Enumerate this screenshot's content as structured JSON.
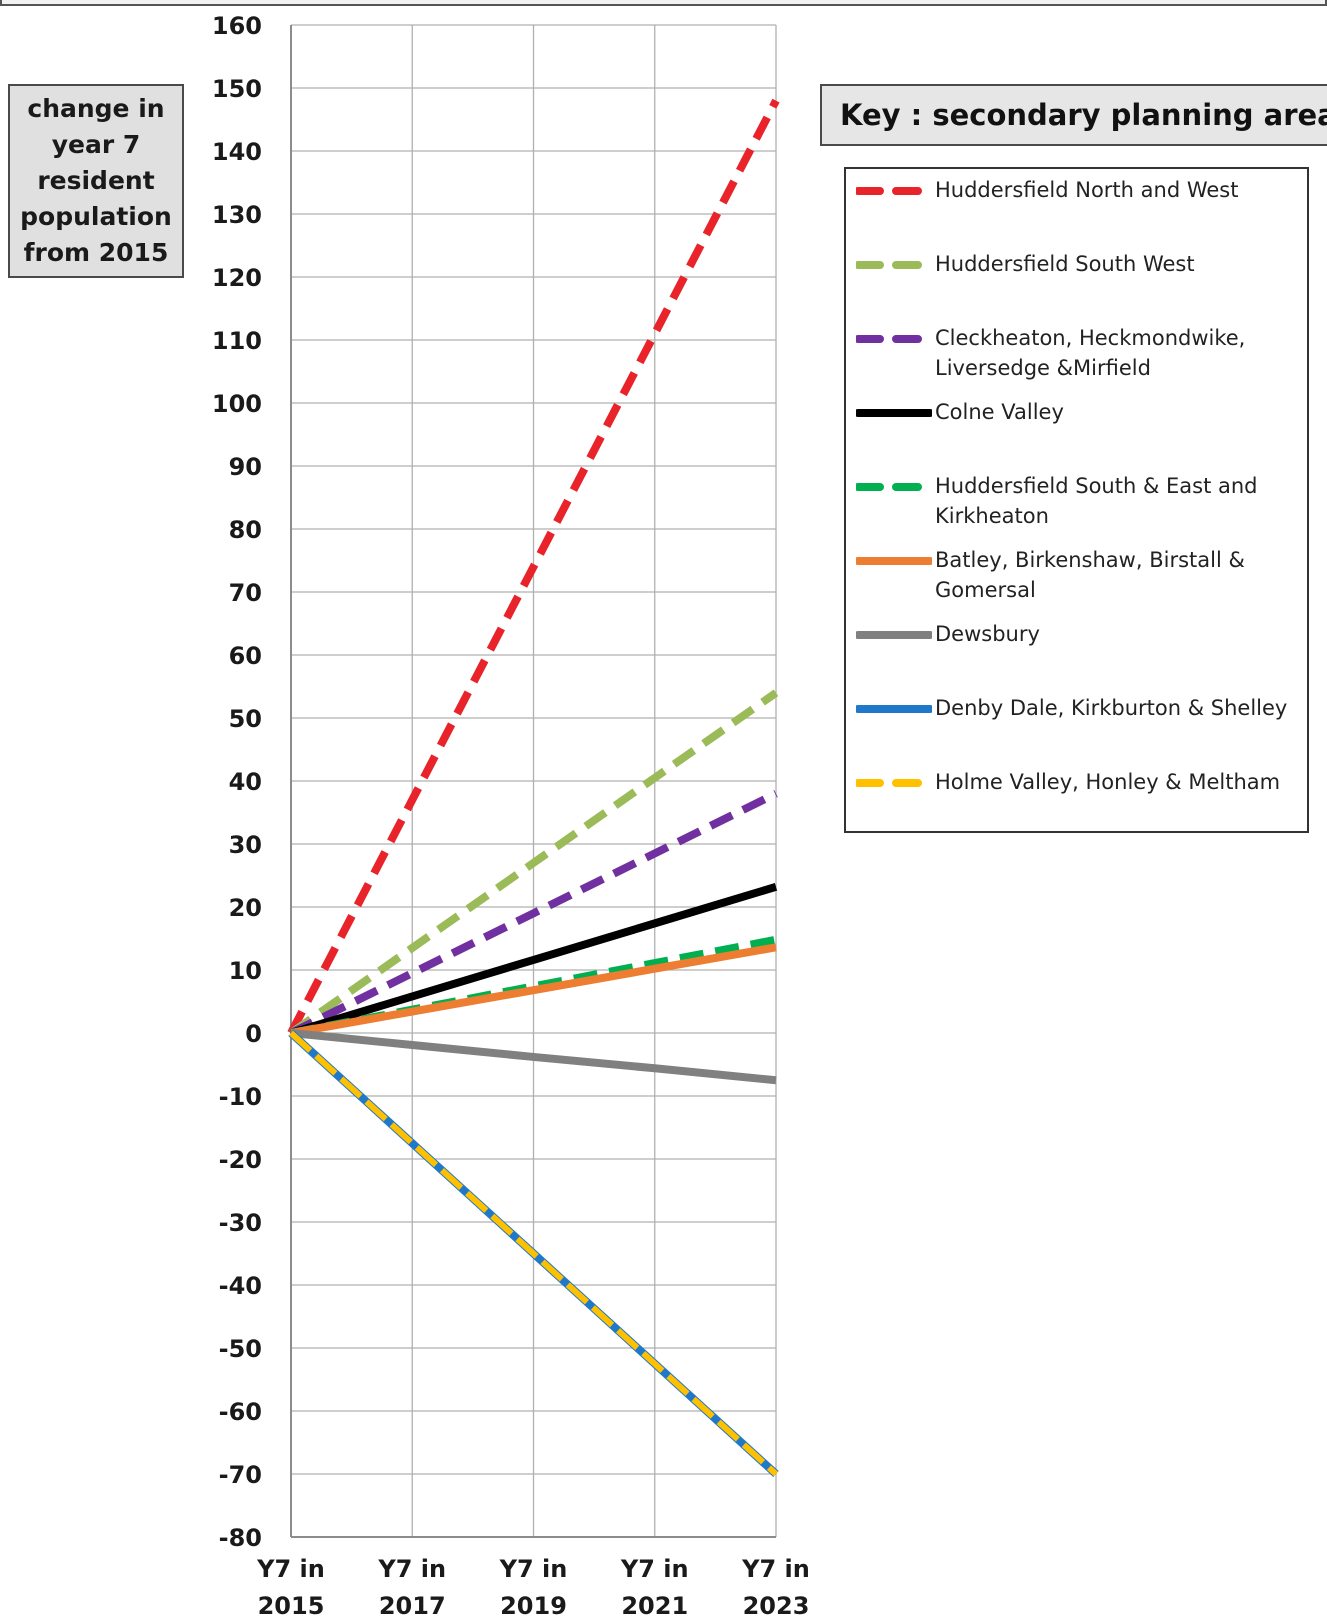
{
  "chart_data": {
    "type": "line",
    "ylabel": "change in\nyear 7\nresident\npopulation\nfrom 2015",
    "xlabel": "",
    "categories": [
      "Y7 in\n2015",
      "Y7 in\n2017",
      "Y7 in\n2019",
      "Y7 in\n2021",
      "Y7 in\n2023"
    ],
    "ylim": [
      -80,
      160
    ],
    "yticks": [
      160,
      150,
      140,
      130,
      120,
      110,
      100,
      90,
      80,
      70,
      60,
      50,
      40,
      30,
      20,
      10,
      0,
      -10,
      -20,
      -30,
      -40,
      -50,
      -60,
      -70,
      -80
    ],
    "grid": true,
    "legend_title": "Key : secondary planning area",
    "legend_position": "right",
    "series": [
      {
        "name": "Huddersfield North and West",
        "color": "#e8232a",
        "style": "dashed",
        "values": [
          0,
          37,
          74,
          111,
          148
        ]
      },
      {
        "name": "Huddersfield South West",
        "color": "#9bbb59",
        "style": "dashed",
        "values": [
          0,
          13.5,
          27,
          40.5,
          54
        ]
      },
      {
        "name": "Cleckheaton, Heckmondwike,\nLiversedge &Mirfield",
        "color": "#7030a0",
        "style": "dashed",
        "values": [
          0,
          9.5,
          19,
          28.5,
          38
        ]
      },
      {
        "name": "Colne Valley",
        "color": "#000000",
        "style": "solid",
        "values": [
          0,
          5.8,
          11.6,
          17.4,
          23.2
        ]
      },
      {
        "name": "Huddersfield South & East and\nKirkheaton",
        "color": "#00b050",
        "style": "dashed",
        "values": [
          0,
          3.7,
          7.4,
          11.1,
          14.8
        ]
      },
      {
        "name": "Batley, Birkenshaw, Birstall &\nGomersal",
        "color": "#ed7d31",
        "style": "solid",
        "values": [
          0,
          3.4,
          6.8,
          10.2,
          13.6
        ]
      },
      {
        "name": "Dewsbury",
        "color": "#808080",
        "style": "solid",
        "values": [
          0,
          -1.9,
          -3.8,
          -5.6,
          -7.5
        ]
      },
      {
        "name": "Denby Dale, Kirkburton & Shelley",
        "color": "#1f78c8",
        "style": "solid",
        "values": [
          0,
          -17.5,
          -35,
          -52.5,
          -70
        ]
      },
      {
        "name": "Holme Valley, Honley & Meltham",
        "color": "#ffc000",
        "style": "dashed",
        "values": [
          0,
          -17.5,
          -35,
          -52.5,
          -70
        ]
      }
    ]
  }
}
